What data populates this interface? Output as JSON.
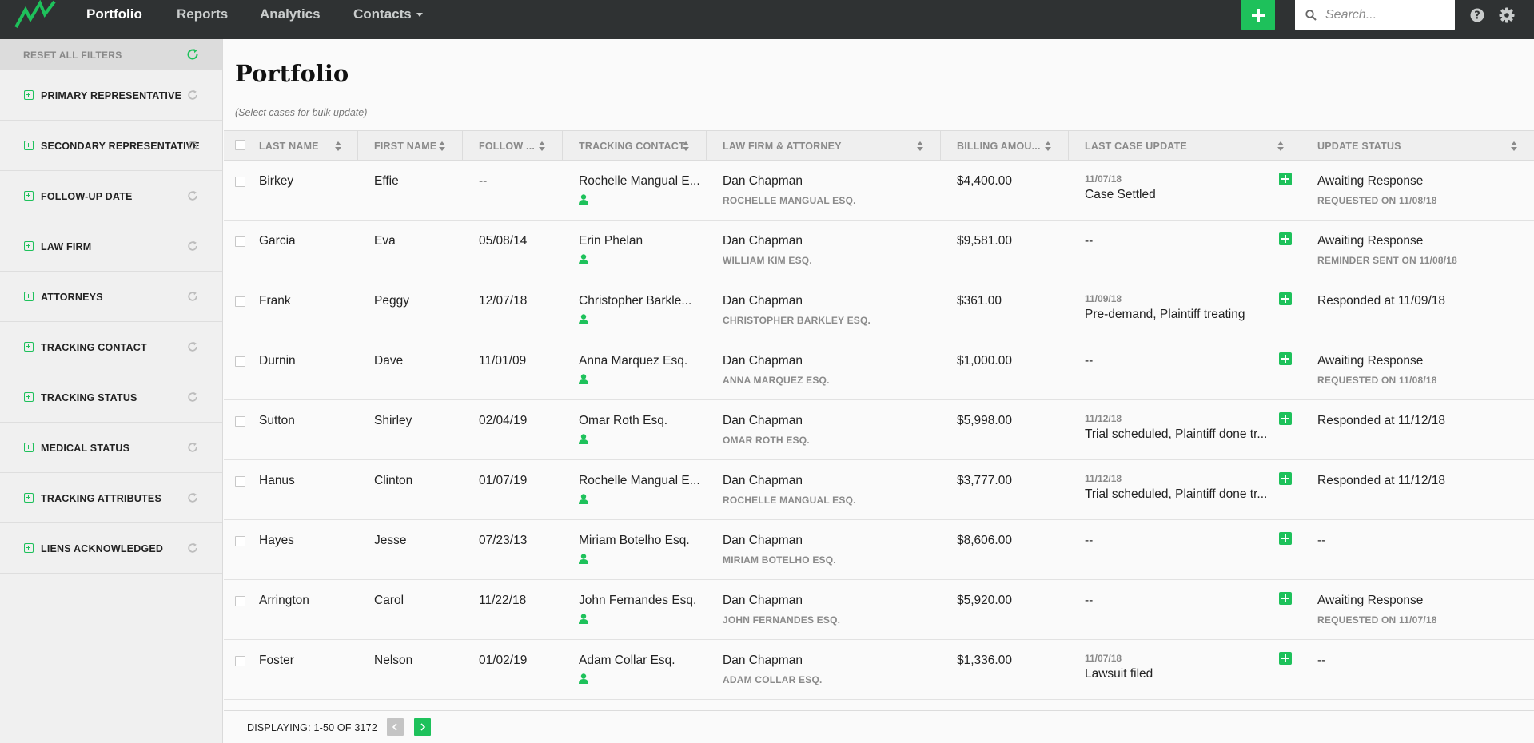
{
  "nav": {
    "links": [
      {
        "label": "Portfolio",
        "active": true
      },
      {
        "label": "Reports",
        "active": false
      },
      {
        "label": "Analytics",
        "active": false
      },
      {
        "label": "Contacts",
        "active": false,
        "dropdown": true
      }
    ],
    "add_icon": "plus-icon",
    "search_placeholder": "Search...",
    "help_icon": "help-icon",
    "settings_icon": "gear-icon"
  },
  "colors": {
    "accent": "#1ec15b",
    "navbar": "#2f3233",
    "sidebar": "#f0f0f0"
  },
  "sidebar": {
    "reset_all_label": "RESET ALL FILTERS",
    "filters": [
      {
        "label": "PRIMARY REPRESENTATIVE"
      },
      {
        "label": "SECONDARY REPRESENTATIVE"
      },
      {
        "label": "FOLLOW-UP DATE"
      },
      {
        "label": "LAW FIRM"
      },
      {
        "label": "ATTORNEYS"
      },
      {
        "label": "TRACKING CONTACT"
      },
      {
        "label": "TRACKING STATUS"
      },
      {
        "label": "MEDICAL STATUS"
      },
      {
        "label": "TRACKING ATTRIBUTES"
      },
      {
        "label": "LIENS ACKNOWLEDGED"
      }
    ]
  },
  "main": {
    "title": "Portfolio",
    "bulk_hint": "(Select cases for bulk update)",
    "columns": [
      {
        "label": "LAST NAME",
        "sortable": true
      },
      {
        "label": "FIRST NAME",
        "sortable": true
      },
      {
        "label": "FOLLOW ...",
        "sortable": true
      },
      {
        "label": "TRACKING CONTACT",
        "sortable": true
      },
      {
        "label": "LAW FIRM & ATTORNEY",
        "sortable": true
      },
      {
        "label": "BILLING AMOU...",
        "sortable": true
      },
      {
        "label": "LAST CASE UPDATE",
        "sortable": true
      },
      {
        "label": "UPDATE STATUS",
        "sortable": true
      }
    ],
    "rows": [
      {
        "last": "Birkey",
        "first": "Effie",
        "follow": "--",
        "contact": "Rochelle Mangual E...",
        "firm": "Dan Chapman",
        "attorney": "ROCHELLE MANGUAL ESQ.",
        "amount": "$4,400.00",
        "update_date": "11/07/18",
        "update": "Case Settled",
        "status": "Awaiting Response",
        "status_sub": "REQUESTED ON 11/08/18"
      },
      {
        "last": "Garcia",
        "first": "Eva",
        "follow": "05/08/14",
        "contact": "Erin Phelan",
        "firm": "Dan Chapman",
        "attorney": "WILLIAM KIM ESQ.",
        "amount": "$9,581.00",
        "update_date": "",
        "update": "--",
        "status": "Awaiting Response",
        "status_sub": "REMINDER SENT ON 11/08/18"
      },
      {
        "last": "Frank",
        "first": "Peggy",
        "follow": "12/07/18",
        "contact": "Christopher Barkle...",
        "firm": "Dan Chapman",
        "attorney": "CHRISTOPHER BARKLEY ESQ.",
        "amount": "$361.00",
        "update_date": "11/09/18",
        "update": "Pre-demand, Plaintiff treating",
        "status": "Responded at 11/09/18",
        "status_sub": ""
      },
      {
        "last": "Durnin",
        "first": "Dave",
        "follow": "11/01/09",
        "contact": "Anna Marquez Esq.",
        "firm": "Dan Chapman",
        "attorney": "ANNA MARQUEZ ESQ.",
        "amount": "$1,000.00",
        "update_date": "",
        "update": "--",
        "status": "Awaiting Response",
        "status_sub": "REQUESTED ON 11/08/18"
      },
      {
        "last": "Sutton",
        "first": "Shirley",
        "follow": "02/04/19",
        "contact": "Omar Roth Esq.",
        "firm": "Dan Chapman",
        "attorney": "OMAR ROTH ESQ.",
        "amount": "$5,998.00",
        "update_date": "11/12/18",
        "update": "Trial scheduled, Plaintiff done tr...",
        "status": "Responded at 11/12/18",
        "status_sub": ""
      },
      {
        "last": "Hanus",
        "first": "Clinton",
        "follow": "01/07/19",
        "contact": "Rochelle Mangual E...",
        "firm": "Dan Chapman",
        "attorney": "ROCHELLE MANGUAL ESQ.",
        "amount": "$3,777.00",
        "update_date": "11/12/18",
        "update": "Trial scheduled, Plaintiff done tr...",
        "status": "Responded at 11/12/18",
        "status_sub": ""
      },
      {
        "last": "Hayes",
        "first": "Jesse",
        "follow": "07/23/13",
        "contact": "Miriam Botelho Esq.",
        "firm": "Dan Chapman",
        "attorney": "MIRIAM BOTELHO ESQ.",
        "amount": "$8,606.00",
        "update_date": "",
        "update": "--",
        "status": "--",
        "status_sub": ""
      },
      {
        "last": "Arrington",
        "first": "Carol",
        "follow": "11/22/18",
        "contact": "John Fernandes Esq.",
        "firm": "Dan Chapman",
        "attorney": "JOHN FERNANDES ESQ.",
        "amount": "$5,920.00",
        "update_date": "",
        "update": "--",
        "status": "Awaiting Response",
        "status_sub": "REQUESTED ON 11/07/18"
      },
      {
        "last": "Foster",
        "first": "Nelson",
        "follow": "01/02/19",
        "contact": "Adam Collar Esq.",
        "firm": "Dan Chapman",
        "attorney": "ADAM COLLAR ESQ.",
        "amount": "$1,336.00",
        "update_date": "11/07/18",
        "update": "Lawsuit filed",
        "status": "--",
        "status_sub": ""
      }
    ],
    "footer": {
      "displaying": "DISPLAYING: 1-50 OF 3172"
    }
  }
}
